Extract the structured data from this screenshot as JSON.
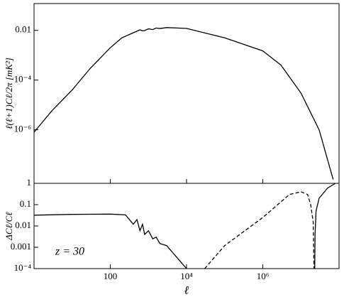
{
  "chart_data": [
    {
      "type": "line",
      "xlog": true,
      "ylog": true,
      "ylabel": "ℓ(ℓ+1)Cℓ/2π [mK²]",
      "xlim": [
        1,
        100000000
      ],
      "ylim": [
        7e-09,
        0.12
      ],
      "yticks": [
        0.01,
        {
          "value": 0.0001,
          "label": "10⁻⁴"
        },
        {
          "value": 1e-06,
          "label": "10⁻⁶"
        }
      ],
      "series": [
        {
          "color": "#000000",
          "dash": false,
          "x": [
            1,
            3,
            10,
            30,
            100,
            200,
            400,
            600,
            700,
            800,
            1000,
            1300,
            1600,
            2000,
            3000,
            10000,
            100000,
            1000000,
            3000000,
            10000000,
            30000000,
            70000000
          ],
          "values": [
            8e-07,
            6e-06,
            4e-05,
            0.0003,
            0.002,
            0.005,
            0.008,
            0.0105,
            0.0095,
            0.0098,
            0.0115,
            0.0108,
            0.0125,
            0.0118,
            0.013,
            0.012,
            0.005,
            0.0015,
            0.0004,
            3e-05,
            1e-06,
            1e-08
          ]
        }
      ]
    },
    {
      "type": "line",
      "xlog": true,
      "ylog": true,
      "ylabel": "ΔCℓ/Cℓ",
      "xlabel": "ℓ",
      "annotation": "z = 30",
      "xlim": [
        1,
        100000000
      ],
      "ylim": [
        0.0001,
        1
      ],
      "xticks": [
        100,
        {
          "value": 10000,
          "label": "10⁴"
        },
        {
          "value": 1000000,
          "label": "10⁶"
        }
      ],
      "yticks": [
        1,
        0.1,
        0.01,
        0.001,
        {
          "value": 0.0001,
          "label": "10⁻⁴"
        }
      ],
      "series": [
        {
          "color": "#000000",
          "dash": false,
          "x": [
            1,
            10,
            100,
            250,
            400,
            500,
            600,
            700,
            800,
            1000,
            1300,
            1600,
            2000,
            3000,
            10000
          ],
          "values": [
            0.032,
            0.035,
            0.036,
            0.033,
            0.012,
            0.02,
            0.006,
            0.012,
            0.004,
            0.006,
            0.0025,
            0.003,
            0.0015,
            0.0012,
            0.0001
          ]
        },
        {
          "color": "#000000",
          "dash": true,
          "x": [
            30000,
            100000,
            1000000,
            5000000,
            10000000,
            15000000,
            18000000,
            21000000,
            22000000
          ],
          "values": [
            0.0001,
            0.0012,
            0.025,
            0.3,
            0.4,
            0.3,
            0.1,
            0.015,
            0.0001
          ]
        },
        {
          "color": "#000000",
          "dash": false,
          "x": [
            23000000,
            23500000,
            25000000,
            30000000,
            50000000,
            80000000
          ],
          "values": [
            0.0001,
            0.004,
            0.05,
            0.2,
            0.6,
            1
          ]
        }
      ]
    }
  ]
}
